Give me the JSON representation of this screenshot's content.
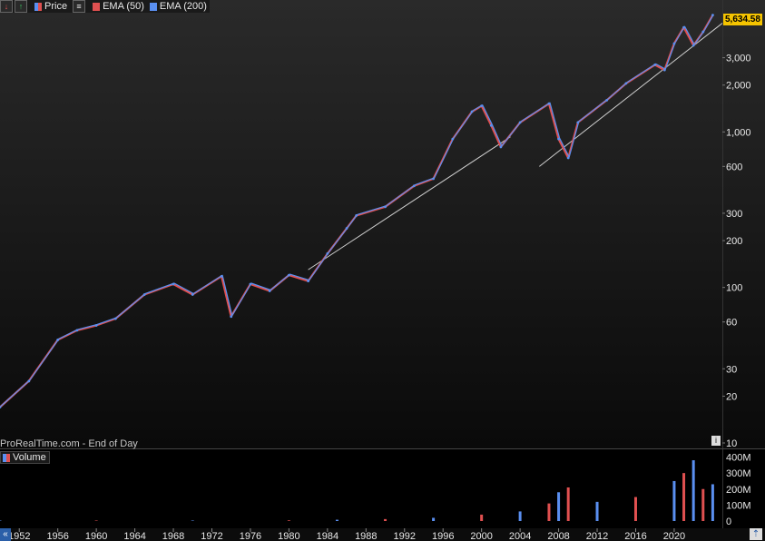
{
  "toolbar": {
    "items": [
      {
        "label": "Price",
        "color": "#e05050"
      },
      {
        "label": "EMA (50)",
        "color": "#e05050"
      },
      {
        "label": "EMA (200)",
        "color": "#5a8ff0"
      }
    ]
  },
  "watermark": "ProRealTime.com - End of Day",
  "last_price_label": "5,634.58",
  "volume_label": "Volume",
  "colors": {
    "up": "#5a8ff0",
    "down": "#e05050",
    "trend_line": "#cfcfcf",
    "last_price": "#f5c400"
  },
  "chart_data": [
    {
      "type": "line",
      "scale": "log",
      "x": [
        1950,
        1953,
        1956,
        1958,
        1960,
        1962,
        1965,
        1968,
        1970,
        1973,
        1974,
        1976,
        1978,
        1980,
        1982,
        1984,
        1986,
        1987,
        1990,
        1993,
        1995,
        1997,
        1999,
        2000,
        2001,
        2002,
        2004,
        2007,
        2008,
        2009,
        2010,
        2013,
        2015,
        2018,
        2019,
        2020,
        2021,
        2022,
        2023,
        2024
      ],
      "y": [
        17,
        25,
        46,
        53,
        57,
        63,
        90,
        105,
        90,
        118,
        65,
        105,
        95,
        120,
        110,
        165,
        240,
        290,
        330,
        450,
        500,
        900,
        1350,
        1470,
        1100,
        800,
        1150,
        1520,
        900,
        680,
        1150,
        1600,
        2050,
        2700,
        2500,
        3700,
        4700,
        3600,
        4400,
        5634.58
      ],
      "yticks": [
        10,
        20,
        30,
        60,
        100,
        200,
        300,
        600,
        "1,000",
        "2,000",
        "3,000"
      ],
      "ytick_values": [
        10,
        20,
        30,
        60,
        100,
        200,
        300,
        600,
        1000,
        2000,
        3000
      ],
      "ylim": [
        10,
        6000
      ],
      "xlim": [
        1950,
        2025
      ],
      "trend_lines": [
        {
          "x": [
            1982,
            2003
          ],
          "y": [
            130,
            930
          ]
        },
        {
          "x": [
            2006,
            2025
          ],
          "y": [
            600,
            5000
          ]
        }
      ]
    },
    {
      "type": "bar",
      "title": "Volume",
      "x": [
        1950,
        1960,
        1970,
        1980,
        1985,
        1990,
        1995,
        2000,
        2004,
        2007,
        2008,
        2009,
        2012,
        2016,
        2020,
        2021,
        2022,
        2023,
        2024
      ],
      "values": [
        0,
        1,
        2,
        4,
        8,
        12,
        20,
        40,
        60,
        110,
        180,
        210,
        120,
        150,
        250,
        300,
        380,
        200,
        230
      ],
      "yticks": [
        "0",
        "100M",
        "200M",
        "300M",
        "400M"
      ],
      "ytick_values": [
        0,
        100,
        200,
        300,
        400
      ],
      "ylim": [
        0,
        420
      ],
      "xticks": [
        "1952",
        "1956",
        "1960",
        "1964",
        "1968",
        "1972",
        "1976",
        "1980",
        "1984",
        "1988",
        "1992",
        "1996",
        "2000",
        "2004",
        "2008",
        "2012",
        "2016",
        "2020"
      ],
      "xtick_values": [
        1952,
        1956,
        1960,
        1964,
        1968,
        1972,
        1976,
        1980,
        1984,
        1988,
        1992,
        1996,
        2000,
        2004,
        2008,
        2012,
        2016,
        2020
      ]
    }
  ]
}
